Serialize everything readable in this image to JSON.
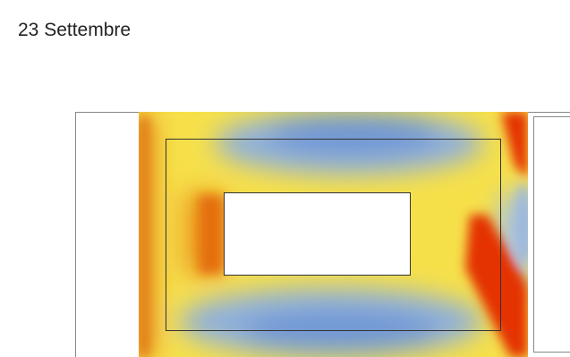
{
  "title": "23 Settembre"
}
